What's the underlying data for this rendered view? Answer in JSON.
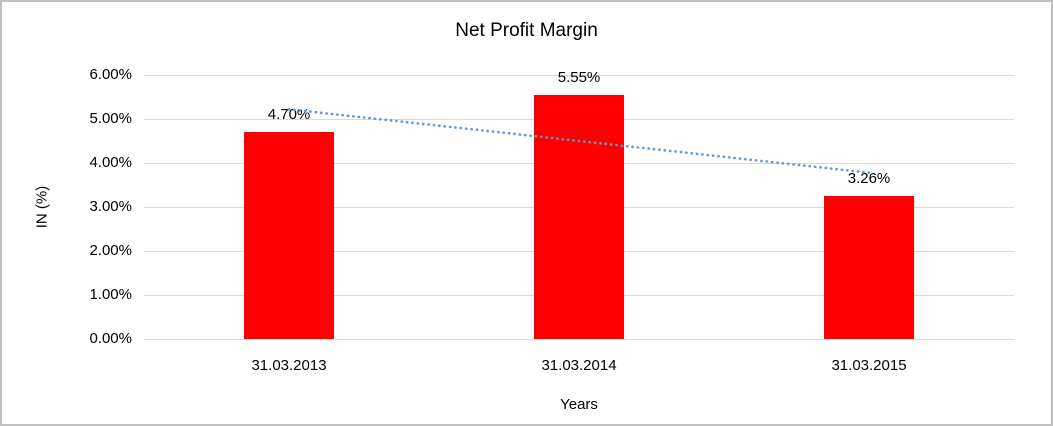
{
  "chart_data": {
    "type": "bar",
    "title": "Net Profit Margin",
    "xlabel": "Years",
    "ylabel": "IN (%)",
    "categories": [
      "31.03.2013",
      "31.03.2014",
      "31.03.2015"
    ],
    "values": [
      4.7,
      5.55,
      3.26
    ],
    "data_labels": [
      "4.70%",
      "5.55%",
      "3.26%"
    ],
    "y_ticks": [
      "6.00%",
      "5.00%",
      "4.00%",
      "3.00%",
      "2.00%",
      "1.00%",
      "0.00%"
    ],
    "ylim": [
      0,
      6
    ],
    "grid": true,
    "legend": "none",
    "bar_color": "#ff0000",
    "gridline_color": "#d9d9d9",
    "text_color": "#000000",
    "trendline": {
      "type": "linear",
      "style": "dotted",
      "color": "#5b9bd5",
      "start_value": 5.22,
      "end_value": 3.78
    }
  }
}
